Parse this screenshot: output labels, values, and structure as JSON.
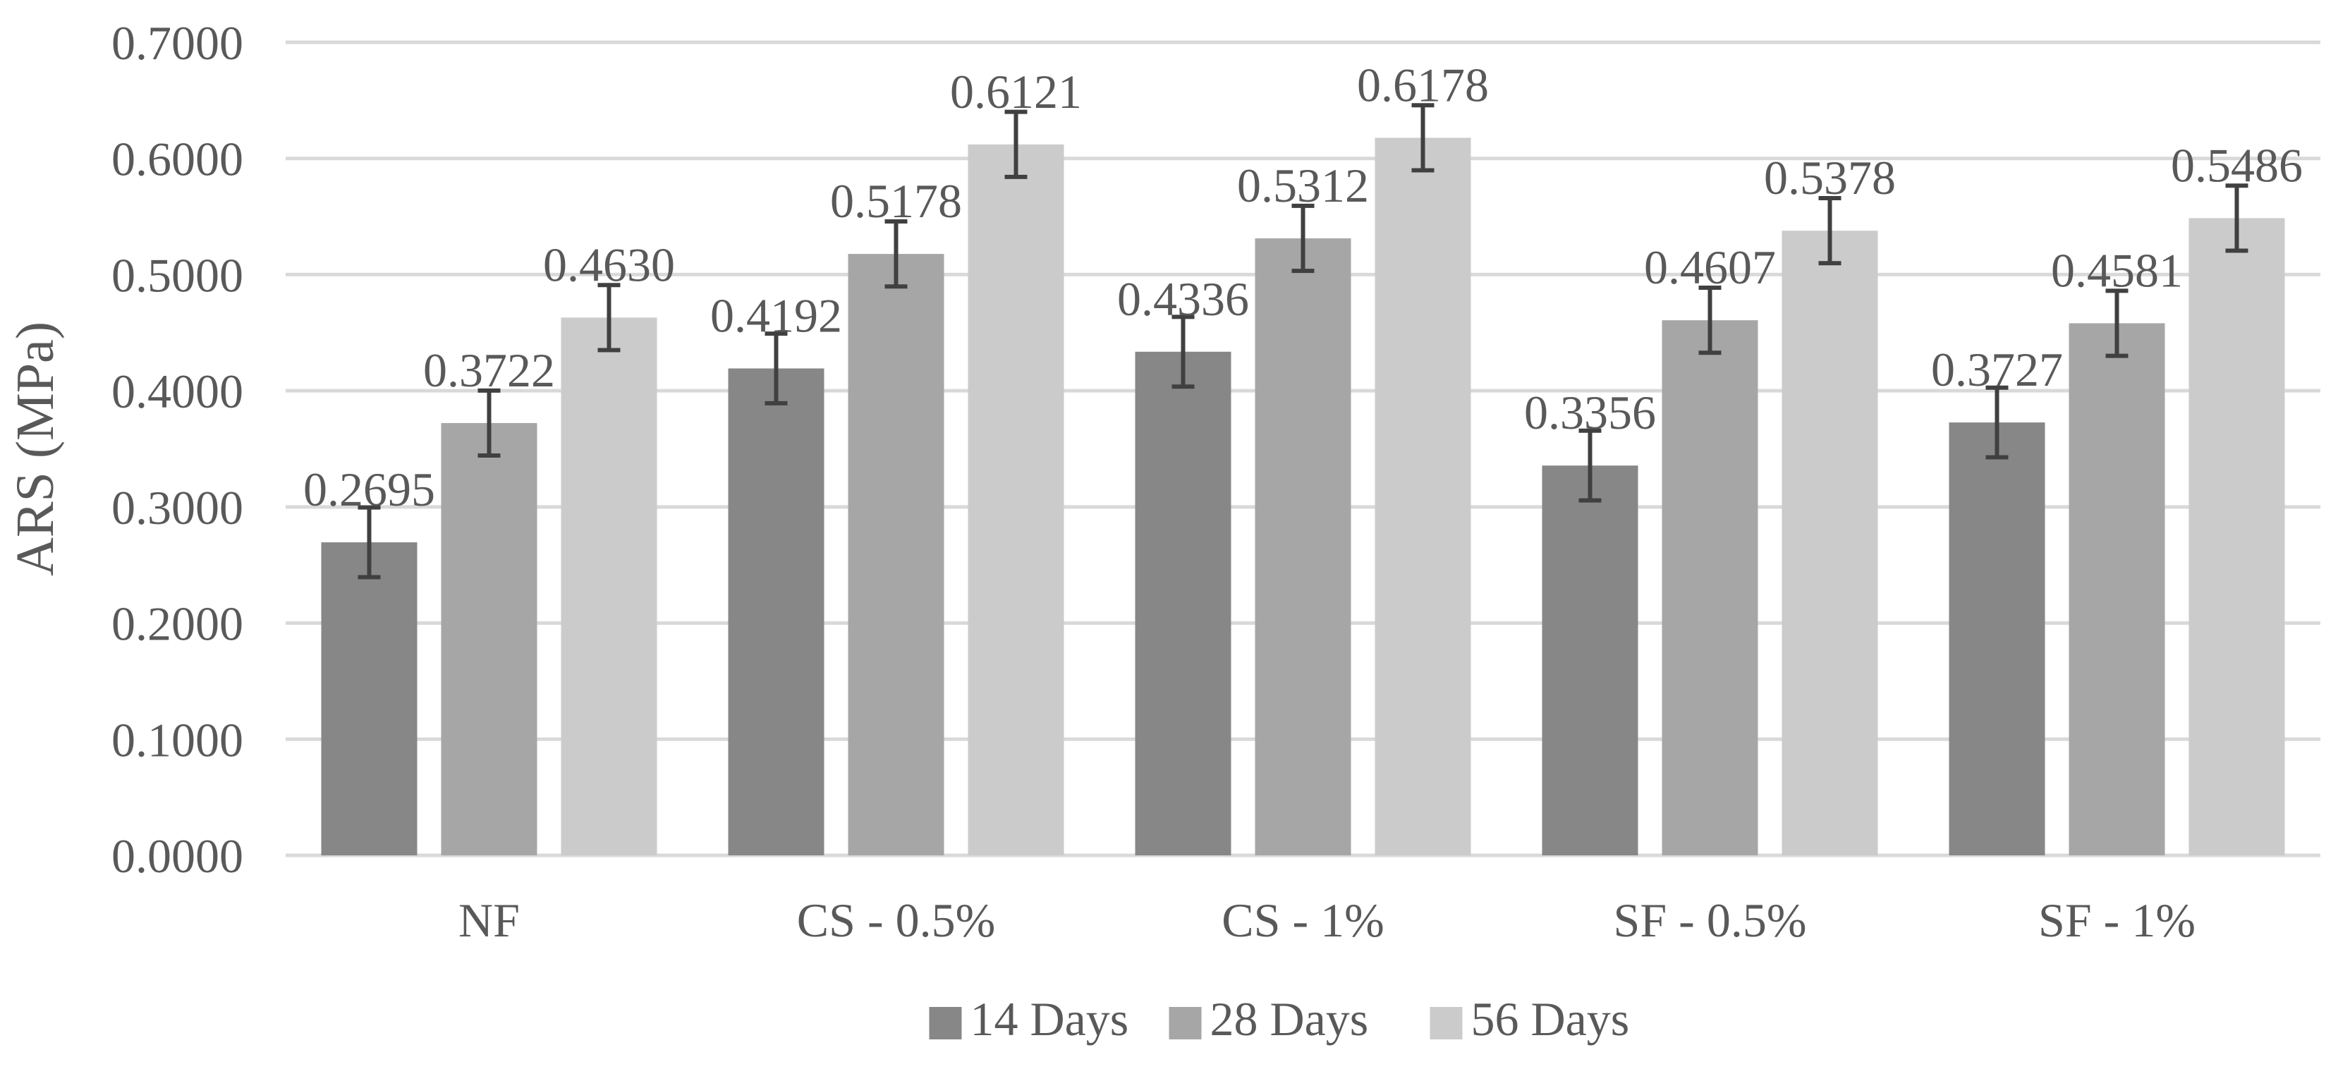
{
  "chart_data": {
    "type": "bar",
    "ylabel": "ARS (MPa)",
    "ylim": [
      0,
      0.7
    ],
    "yticks": [
      "0.0000",
      "0.1000",
      "0.2000",
      "0.3000",
      "0.4000",
      "0.5000",
      "0.6000",
      "0.7000"
    ],
    "categories": [
      "NF",
      "CS - 0.5%",
      "CS - 1%",
      "SF - 0.5%",
      "SF - 1%"
    ],
    "series": [
      {
        "name": "14 Days",
        "color": "#878787",
        "values": [
          0.2695,
          0.4192,
          0.4336,
          0.3356,
          0.3727
        ],
        "labels": [
          "0.2695",
          "0.4192",
          "0.4336",
          "0.3356",
          "0.3727"
        ],
        "errors": [
          0.03,
          0.03,
          0.03,
          0.03,
          0.03
        ]
      },
      {
        "name": "28 Days",
        "color": "#a6a6a6",
        "values": [
          0.3722,
          0.5178,
          0.5312,
          0.4607,
          0.4581
        ],
        "labels": [
          "0.3722",
          "0.5178",
          "0.5312",
          "0.4607",
          "0.4581"
        ],
        "errors": [
          0.028,
          0.028,
          0.028,
          0.028,
          0.028
        ]
      },
      {
        "name": "56 Days",
        "color": "#cbcbcb",
        "values": [
          0.463,
          0.6121,
          0.6178,
          0.5378,
          0.5486
        ],
        "labels": [
          "0.4630",
          "0.6121",
          "0.6178",
          "0.5378",
          "0.5486"
        ],
        "errors": [
          0.028,
          0.028,
          0.028,
          0.028,
          0.028
        ]
      }
    ],
    "grid": true,
    "legend": "bottom",
    "colors": {
      "grid": "#d9d9d9",
      "error_bar": "#404040",
      "text": "#595959"
    }
  }
}
